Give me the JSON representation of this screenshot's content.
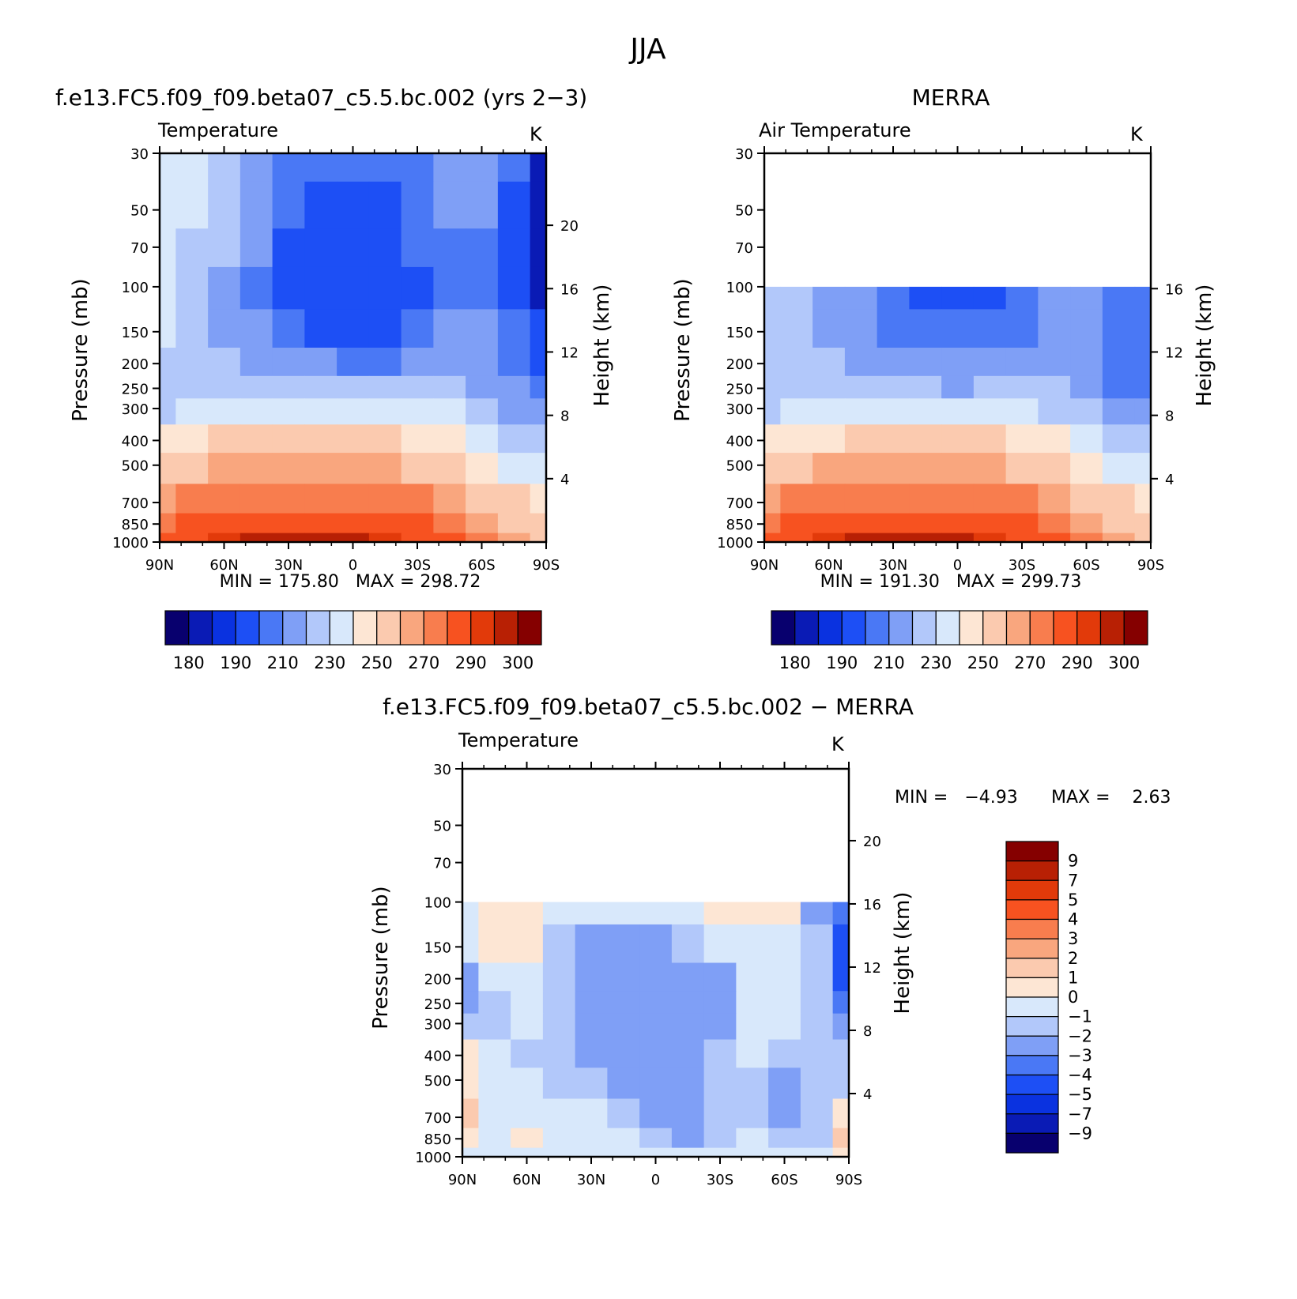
{
  "figure": {
    "main_title": "JJA"
  },
  "colors": {
    "abs_levels_palette": [
      "#08006e",
      "#0a1bb5",
      "#0a32e0",
      "#1d4ff5",
      "#4a78f5",
      "#7f9ff6",
      "#b2c8fa",
      "#d8e8fb",
      "#fde6d4",
      "#fbcaaf",
      "#f9a67e",
      "#f87d4e",
      "#f75220",
      "#e23a0a",
      "#b82004",
      "#850000"
    ],
    "diff_levels_palette": [
      "#08006e",
      "#0a1bb5",
      "#0a32e0",
      "#1d4ff5",
      "#4a78f5",
      "#7f9ff6",
      "#b2c8fa",
      "#d8e8fb",
      "#fde6d4",
      "#fbcaaf",
      "#f9a67e",
      "#f87d4e",
      "#f75220",
      "#e23a0a",
      "#b82004",
      "#850000"
    ]
  },
  "panels": [
    {
      "title": "f.e13.FC5.f09_f09.beta07_c5.5.bc.002 (yrs 2−3)",
      "left_label": "Temperature",
      "right_label": "K",
      "ylabel": "Pressure (mb)",
      "y2label": "Height (km)",
      "stats": "MIN = 175.80   MAX = 298.72"
    },
    {
      "title": "MERRA",
      "left_label": "Air Temperature",
      "right_label": "K",
      "ylabel": "Pressure (mb)",
      "y2label": "Height (km)",
      "stats": "MIN = 191.30   MAX = 299.73"
    },
    {
      "title": "f.e13.FC5.f09_f09.beta07_c5.5.bc.002 − MERRA",
      "left_label": "Temperature",
      "right_label": "K",
      "ylabel": "Pressure (mb)",
      "y2label": "Height (km)",
      "stats_min": "MIN =   −4.93",
      "stats_max": "MAX =    2.63"
    }
  ],
  "chart_data": [
    {
      "type": "heatmap",
      "title": "f.e13.FC5.f09_f09.beta07_c5.5.bc.002 (yrs 2−3)",
      "subtitle": "Temperature",
      "units": "K",
      "xlabel": "",
      "ylabel": "Pressure (mb)",
      "y2label": "Height (km)",
      "x_ticks": [
        "90N",
        "60N",
        "30N",
        "0",
        "30S",
        "60S",
        "90S"
      ],
      "y_ticks": [
        "30",
        "50",
        "70",
        "100",
        "150",
        "200",
        "250",
        "300",
        "400",
        "500",
        "700",
        "850",
        "1000"
      ],
      "y2_ticks": [
        "20",
        "16",
        "12",
        "8",
        "4"
      ],
      "ylim": [
        1000,
        30
      ],
      "y_scale": "log",
      "min": 175.8,
      "max": 298.72,
      "colorbar_labels": [
        "180",
        "190",
        "210",
        "230",
        "250",
        "270",
        "290",
        "300"
      ],
      "colorbar_levels": [
        180,
        185,
        190,
        200,
        210,
        220,
        230,
        240,
        250,
        260,
        270,
        280,
        290,
        295,
        300
      ],
      "latitudes": [
        90,
        75,
        60,
        45,
        30,
        15,
        0,
        -15,
        -30,
        -45,
        -60,
        -75,
        -90
      ],
      "pressures": [
        30,
        50,
        70,
        100,
        150,
        200,
        250,
        300,
        400,
        500,
        700,
        850,
        1000
      ],
      "values": [
        [
          236,
          231,
          224,
          216,
          208,
          204,
          202,
          203,
          208,
          214,
          212,
          200,
          184
        ],
        [
          235,
          230,
          222,
          212,
          203,
          198,
          196,
          197,
          203,
          211,
          210,
          198,
          182
        ],
        [
          235,
          229,
          221,
          210,
          199,
          194,
          192,
          194,
          200,
          209,
          209,
          198,
          183
        ],
        [
          234,
          228,
          219,
          209,
          198,
          192,
          190,
          192,
          199,
          208,
          208,
          199,
          184
        ],
        [
          232,
          227,
          219,
          210,
          202,
          198,
          196,
          198,
          203,
          210,
          210,
          203,
          190
        ],
        [
          229,
          226,
          222,
          216,
          212,
          210,
          209,
          209,
          212,
          215,
          214,
          208,
          197
        ],
        [
          228,
          228,
          227,
          225,
          222,
          221,
          220,
          221,
          222,
          222,
          218,
          212,
          203
        ],
        [
          229,
          232,
          236,
          238,
          239,
          239,
          238,
          238,
          236,
          232,
          226,
          218,
          210
        ],
        [
          244,
          248,
          250,
          252,
          253,
          253,
          252,
          251,
          248,
          243,
          236,
          228,
          221
        ],
        [
          255,
          259,
          262,
          264,
          265,
          265,
          264,
          262,
          258,
          252,
          245,
          237,
          232
        ],
        [
          268,
          273,
          276,
          278,
          279,
          279,
          278,
          276,
          272,
          266,
          258,
          250,
          245
        ],
        [
          276,
          281,
          284,
          286,
          287,
          287,
          286,
          284,
          280,
          274,
          266,
          258,
          252
        ],
        [
          282,
          288,
          292,
          295,
          298,
          298,
          296,
          293,
          288,
          281,
          272,
          262,
          256
        ]
      ]
    },
    {
      "type": "heatmap",
      "title": "MERRA",
      "subtitle": "Air Temperature",
      "units": "K",
      "xlabel": "",
      "ylabel": "Pressure (mb)",
      "y2label": "Height (km)",
      "x_ticks": [
        "90N",
        "60N",
        "30N",
        "0",
        "30S",
        "60S",
        "90S"
      ],
      "y_ticks": [
        "30",
        "50",
        "70",
        "100",
        "150",
        "200",
        "250",
        "300",
        "400",
        "500",
        "700",
        "850",
        "1000"
      ],
      "y2_ticks": [
        "16",
        "12",
        "8",
        "4"
      ],
      "ylim": [
        1000,
        30
      ],
      "y_scale": "log",
      "min": 191.3,
      "max": 299.73,
      "colorbar_labels": [
        "180",
        "190",
        "210",
        "230",
        "250",
        "270",
        "290",
        "300"
      ],
      "colorbar_levels": [
        180,
        185,
        190,
        200,
        210,
        220,
        230,
        240,
        250,
        260,
        270,
        280,
        290,
        295,
        300
      ],
      "latitudes": [
        90,
        75,
        60,
        45,
        30,
        15,
        0,
        -15,
        -30,
        -45,
        -60,
        -75,
        -90
      ],
      "pressures": [
        100,
        150,
        200,
        250,
        300,
        400,
        500,
        700,
        850,
        1000
      ],
      "values": [
        [
          226,
          222,
          216,
          210,
          204,
          199,
          196,
          199,
          205,
          212,
          214,
          205,
          202
        ],
        [
          228,
          224,
          219,
          214,
          208,
          204,
          202,
          204,
          208,
          214,
          214,
          206,
          203
        ],
        [
          226,
          224,
          222,
          218,
          214,
          212,
          211,
          212,
          214,
          217,
          215,
          207,
          204
        ],
        [
          226,
          226,
          225,
          223,
          221,
          220,
          219,
          220,
          220,
          220,
          216,
          208,
          205
        ],
        [
          228,
          230,
          232,
          233,
          232,
          232,
          231,
          231,
          230,
          227,
          222,
          214,
          210
        ],
        [
          243,
          246,
          249,
          251,
          252,
          252,
          251,
          250,
          247,
          243,
          236,
          229,
          224
        ],
        [
          254,
          258,
          261,
          263,
          264,
          264,
          263,
          262,
          258,
          252,
          245,
          238,
          235
        ],
        [
          268,
          273,
          276,
          278,
          279,
          279,
          278,
          276,
          272,
          266,
          258,
          250,
          246
        ],
        [
          276,
          281,
          285,
          287,
          288,
          288,
          287,
          285,
          281,
          275,
          266,
          258,
          252
        ],
        [
          282,
          288,
          293,
          296,
          299,
          299,
          298,
          294,
          289,
          282,
          273,
          263,
          258
        ]
      ]
    },
    {
      "type": "heatmap",
      "title": "f.e13.FC5.f09_f09.beta07_c5.5.bc.002 − MERRA",
      "subtitle": "Temperature",
      "units": "K",
      "xlabel": "",
      "ylabel": "Pressure (mb)",
      "y2label": "Height (km)",
      "x_ticks": [
        "90N",
        "60N",
        "30N",
        "0",
        "30S",
        "60S",
        "90S"
      ],
      "y_ticks": [
        "30",
        "50",
        "70",
        "100",
        "150",
        "200",
        "250",
        "300",
        "400",
        "500",
        "700",
        "850",
        "1000"
      ],
      "y2_ticks": [
        "20",
        "16",
        "12",
        "8",
        "4"
      ],
      "ylim": [
        1000,
        30
      ],
      "y_scale": "log",
      "min": -4.93,
      "max": 2.63,
      "colorbar_labels": [
        "9",
        "7",
        "5",
        "4",
        "3",
        "2",
        "1",
        "0",
        "−1",
        "−2",
        "−3",
        "−4",
        "−5",
        "−7",
        "−9"
      ],
      "colorbar_levels": [
        -9,
        -7,
        -5,
        -4,
        -3,
        -2,
        -1,
        0,
        1,
        2,
        3,
        4,
        5,
        7,
        9
      ],
      "latitudes": [
        90,
        75,
        60,
        45,
        30,
        15,
        0,
        -15,
        -30,
        -45,
        -60,
        -75,
        -90
      ],
      "pressures": [
        100,
        150,
        200,
        250,
        300,
        400,
        500,
        700,
        850,
        1000
      ],
      "values": [
        [
          -0.5,
          0.4,
          0.3,
          -0.6,
          -0.8,
          -0.9,
          -0.7,
          -0.4,
          0.3,
          0.6,
          0.3,
          -2.6,
          -3.6
        ],
        [
          -0.7,
          0.4,
          0.2,
          -1.2,
          -2.3,
          -2.6,
          -2.4,
          -2.0,
          -0.6,
          -0.3,
          -0.4,
          -1.2,
          -4.2
        ],
        [
          -2.2,
          -1.0,
          -0.8,
          -1.6,
          -2.4,
          -2.7,
          -2.6,
          -2.5,
          -2.1,
          -0.7,
          -0.8,
          -1.6,
          -4.4
        ],
        [
          -3.0,
          -1.3,
          -1.0,
          -1.8,
          -2.4,
          -2.8,
          -2.9,
          -2.7,
          -2.2,
          -1.0,
          -0.8,
          -1.8,
          -3.6
        ],
        [
          -1.6,
          -1.2,
          -1.0,
          -1.7,
          -2.3,
          -2.6,
          -2.6,
          -2.5,
          -2.1,
          -1.0,
          -0.7,
          -1.8,
          -2.4
        ],
        [
          0.5,
          -0.6,
          -1.2,
          -1.5,
          -2.2,
          -2.4,
          -2.4,
          -2.3,
          -1.9,
          -0.9,
          -1.8,
          -1.4,
          -1.6
        ],
        [
          0.8,
          -0.4,
          -0.9,
          -1.2,
          -1.8,
          -2.2,
          -2.3,
          -2.2,
          -2.0,
          -1.1,
          -2.4,
          -1.5,
          -1.2
        ],
        [
          1.2,
          -0.5,
          -0.6,
          -0.7,
          -1.0,
          -1.5,
          -2.1,
          -2.2,
          -2.0,
          -1.2,
          -2.2,
          -1.6,
          0.6
        ],
        [
          0.3,
          -0.4,
          0.5,
          -0.4,
          -0.7,
          -1.0,
          -1.3,
          -2.6,
          -1.5,
          -0.8,
          -1.8,
          -1.2,
          1.2
        ],
        [
          -0.2,
          -0.6,
          -0.7,
          -0.5,
          -0.8,
          -0.7,
          -0.6,
          -0.9,
          -0.7,
          -0.5,
          -0.9,
          -0.7,
          0.2
        ]
      ]
    }
  ]
}
